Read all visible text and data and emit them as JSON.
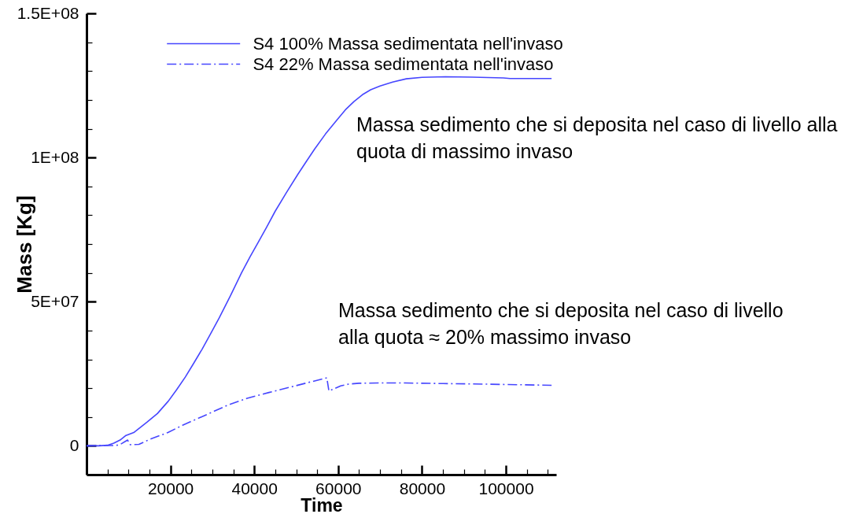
{
  "chart_data": {
    "type": "line",
    "xlabel": "Time",
    "ylabel": "Mass [Kg]",
    "xlim": [
      0,
      112000
    ],
    "ylim": [
      -10000000,
      150000000
    ],
    "xticks": [
      {
        "value": 5000,
        "label": null
      },
      {
        "value": 10000,
        "label": null
      },
      {
        "value": 15000,
        "label": null
      },
      20000,
      {
        "value": 25000,
        "label": null
      },
      {
        "value": 30000,
        "label": null
      },
      {
        "value": 35000,
        "label": null
      },
      40000,
      {
        "value": 45000,
        "label": null
      },
      {
        "value": 50000,
        "label": null
      },
      {
        "value": 55000,
        "label": null
      },
      60000,
      {
        "value": 65000,
        "label": null
      },
      {
        "value": 70000,
        "label": null
      },
      {
        "value": 75000,
        "label": null
      },
      80000,
      {
        "value": 85000,
        "label": null
      },
      {
        "value": 90000,
        "label": null
      },
      {
        "value": 95000,
        "label": null
      },
      100000,
      {
        "value": 105000,
        "label": null
      },
      {
        "value": 110000,
        "label": null
      }
    ],
    "yticks": [
      0,
      {
        "value": 10000000,
        "label": null
      },
      {
        "value": 20000000,
        "label": null
      },
      {
        "value": 30000000,
        "label": null
      },
      {
        "value": 40000000,
        "label": null
      },
      {
        "value": 50000000,
        "label": "5E+07"
      },
      {
        "value": 60000000,
        "label": null
      },
      {
        "value": 70000000,
        "label": null
      },
      {
        "value": 80000000,
        "label": null
      },
      {
        "value": 90000000,
        "label": null
      },
      {
        "value": 100000000,
        "label": "1E+08"
      },
      {
        "value": 110000000,
        "label": null
      },
      {
        "value": 120000000,
        "label": null
      },
      {
        "value": 130000000,
        "label": null
      },
      {
        "value": 140000000,
        "label": null
      },
      {
        "value": 150000000,
        "label": "1.5E+08"
      }
    ],
    "legend": "top",
    "series": [
      {
        "name": "S4 100% Massa sedimentata nell'invaso",
        "color": "#4646ff",
        "line_style": "solid",
        "x": [
          0,
          3000,
          5000,
          6500,
          8000,
          9400,
          11250,
          14400,
          16900,
          19500,
          21500,
          23570,
          25500,
          27590,
          29600,
          31610,
          34300,
          36960,
          38980,
          40990,
          43000,
          45000,
          47700,
          50360,
          52400,
          54375,
          57000,
          59740,
          61700,
          63750,
          65800,
          67770,
          70000,
          73000,
          76250,
          80000,
          85600,
          92000,
          99400,
          101000,
          110900
        ],
        "values": [
          0,
          0,
          200000,
          900000,
          2000000,
          3600000,
          4600000,
          8200000,
          11200000,
          15500000,
          19500000,
          23900000,
          28500000,
          33600000,
          38900000,
          44300000,
          52000000,
          60000000,
          65500000,
          70700000,
          76000000,
          81400000,
          87900000,
          94100000,
          98600000,
          102900000,
          108200000,
          113100000,
          116500000,
          119400000,
          121800000,
          123500000,
          124800000,
          126200000,
          127300000,
          127800000,
          128000000,
          127900000,
          127600000,
          127400000,
          127400000
        ]
      },
      {
        "name": "S4 22% Massa sedimentata nell'invaso",
        "color": "#4646ff",
        "line_style": "dashed",
        "x": [
          0,
          5000,
          6300,
          7800,
          9800,
          10400,
          12500,
          15000,
          19400,
          23000,
          28900,
          33500,
          38300,
          43500,
          49000,
          53000,
          57300,
          57800,
          60600,
          62500,
          65000,
          70000,
          76000,
          85000,
          95000,
          110900
        ],
        "values": [
          0,
          100000,
          100000,
          300000,
          2000000,
          400000,
          500000,
          2200000,
          4600000,
          7200000,
          11000000,
          14000000,
          16500000,
          18500000,
          20500000,
          22000000,
          23600000,
          19000000,
          20800000,
          21400000,
          21700000,
          21800000,
          21800000,
          21600000,
          21400000,
          21000000
        ]
      }
    ],
    "annotations": [
      "Massa sedimento che si deposita nel caso di livello alla\nquota di massimo invaso",
      "Massa sedimento che si deposita nel caso di livello\nalla quota ≈ 20% massimo invaso"
    ]
  }
}
